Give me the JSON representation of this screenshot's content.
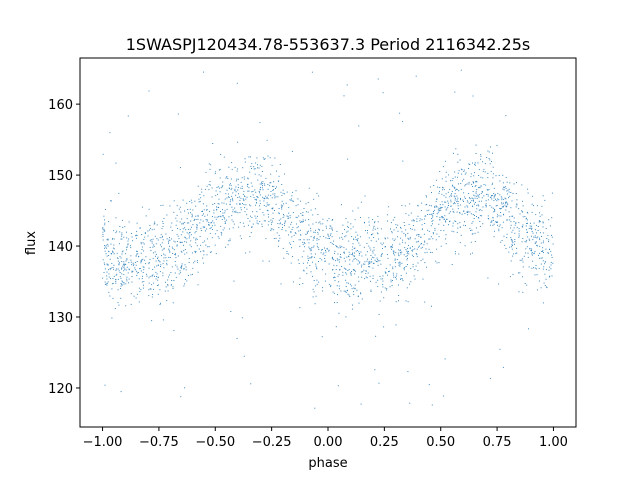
{
  "chart_data": {
    "type": "scatter",
    "title": "1SWASPJ120434.78-553637.3 Period 2116342.25s",
    "xlabel": "phase",
    "ylabel": "flux",
    "xlim": [
      -1.1,
      1.1
    ],
    "ylim": [
      114.5,
      166.5
    ],
    "x_ticks": [
      -1.0,
      -0.75,
      -0.5,
      -0.25,
      0.0,
      0.25,
      0.5,
      0.75,
      1.0
    ],
    "x_tick_labels": [
      "−1.00",
      "−0.75",
      "−0.50",
      "−0.25",
      "0.00",
      "0.25",
      "0.50",
      "0.75",
      "1.00"
    ],
    "y_ticks": [
      120,
      130,
      140,
      150,
      160
    ],
    "y_tick_labels": [
      "120",
      "130",
      "140",
      "150",
      "160"
    ],
    "grid": false,
    "series": [
      {
        "color": "#1f77b4",
        "trend": {
          "x": [
            -1.0,
            -0.95,
            -0.9,
            -0.85,
            -0.8,
            -0.75,
            -0.7,
            -0.65,
            -0.6,
            -0.55,
            -0.5,
            -0.45,
            -0.4,
            -0.35,
            -0.3,
            -0.25,
            -0.2,
            -0.15,
            -0.1,
            -0.05,
            0.0,
            0.05,
            0.1,
            0.15,
            0.2,
            0.25,
            0.3,
            0.35,
            0.4,
            0.45,
            0.5,
            0.55,
            0.6,
            0.65,
            0.7,
            0.75,
            0.8,
            0.85,
            0.9,
            0.95,
            1.0
          ],
          "y": [
            140,
            137,
            137.5,
            138,
            138.5,
            138,
            139,
            140,
            141,
            143,
            145,
            146,
            146.5,
            147,
            147.5,
            146,
            144,
            142,
            141,
            140,
            139,
            137,
            137.5,
            138,
            138.5,
            138,
            139,
            140,
            141,
            143,
            145,
            146,
            146.5,
            147,
            147.5,
            146,
            144,
            142,
            141,
            140,
            139
          ]
        },
        "scatter_sigma": 3.0,
        "outlier_range": [
          117,
          166
        ]
      }
    ]
  }
}
